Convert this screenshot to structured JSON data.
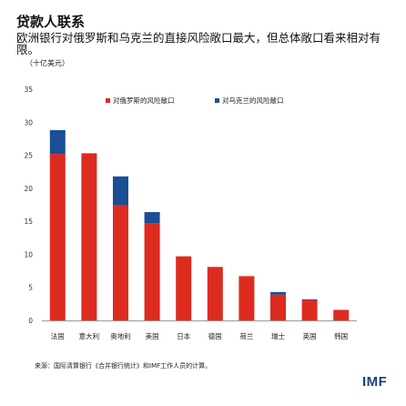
{
  "header": {
    "title": "贷款人联系",
    "subtitle": "欧洲银行对俄罗斯和乌克兰的直接风险敞口最大，但总体敞口看来相对有限。",
    "unit": "（十亿美元）"
  },
  "footer": {
    "source": "来源：国际清算银行《合并银行统计》和IMF工作人员的计算。",
    "logo": "IMF"
  },
  "colors": {
    "russia": "#de2b1f",
    "ukraine": "#1a4f96",
    "axis_text": "#333333",
    "axis_line": "#999999",
    "logo": "#1c3f7a"
  },
  "chart_data": {
    "type": "bar",
    "stacked": true,
    "title": "",
    "xlabel": "",
    "ylabel": "",
    "ylim": [
      0,
      35
    ],
    "yticks": [
      0,
      5,
      10,
      15,
      20,
      25,
      30,
      35
    ],
    "grid": false,
    "legend_position": "top-right",
    "categories": [
      "法国",
      "意大利",
      "奥地利",
      "美国",
      "日本",
      "德国",
      "荷兰",
      "瑞士",
      "英国",
      "韩国"
    ],
    "series": [
      {
        "name": "对俄罗斯的风险敞口",
        "color": "#de2b1f",
        "values": [
          25.2,
          25.3,
          17.5,
          14.7,
          9.7,
          8.1,
          6.7,
          3.9,
          3.1,
          1.6
        ]
      },
      {
        "name": "对乌克兰的风险敞口",
        "color": "#1a4f96",
        "values": [
          3.6,
          0,
          4.3,
          1.7,
          0,
          0,
          0,
          0.4,
          0.1,
          0
        ]
      }
    ]
  }
}
